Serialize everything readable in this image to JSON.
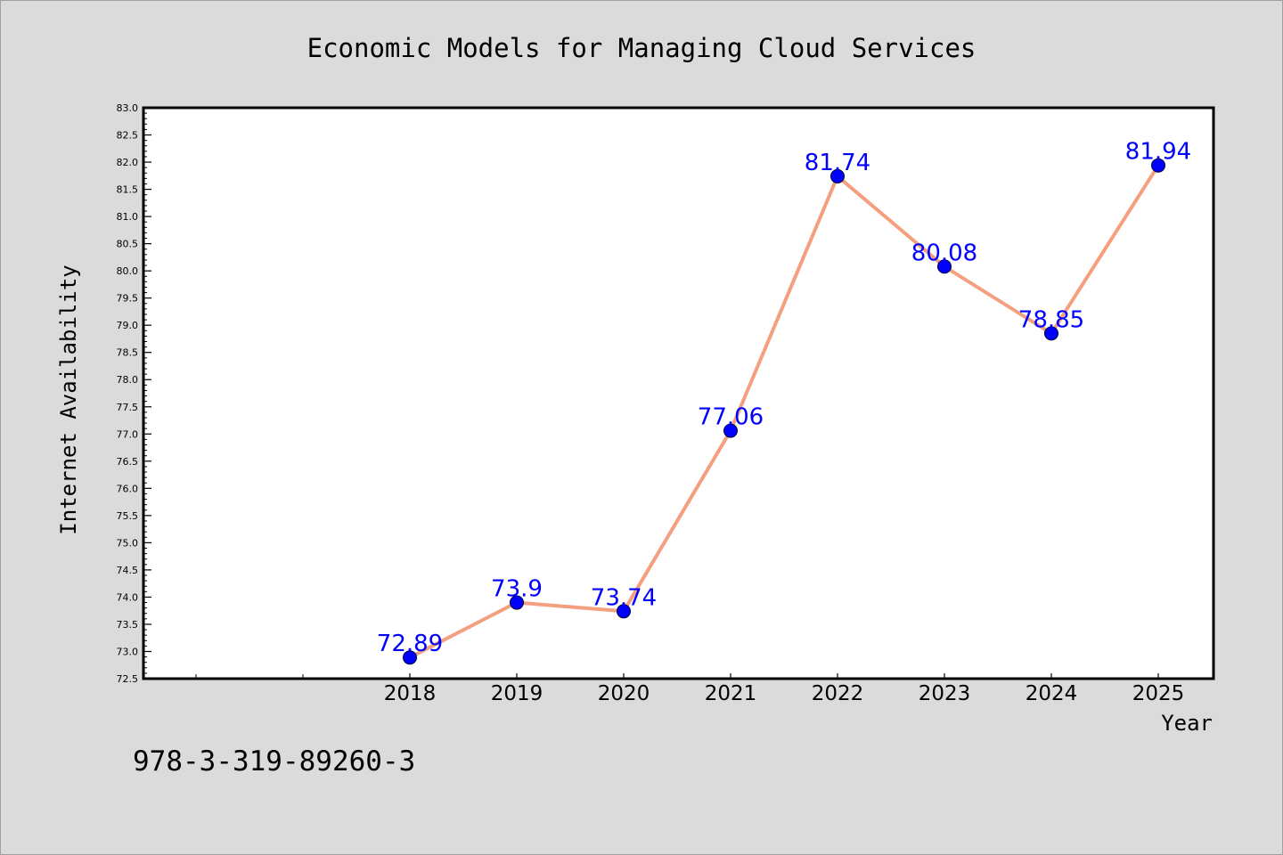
{
  "colors": {
    "background": "#dbdbdb",
    "plot_background": "#ffffff",
    "line": "#f4a07f",
    "marker": "#0000ff",
    "data_label": "#0000ff"
  },
  "isbn": "978-3-319-89260-3",
  "chart_data": {
    "type": "line",
    "title": "Economic Models for Managing Cloud Services",
    "xlabel": "Year",
    "ylabel": "Internet Availability",
    "x": [
      "2018",
      "2019",
      "2020",
      "2021",
      "2022",
      "2023",
      "2024",
      "2025"
    ],
    "series": [
      {
        "values": [
          72.89,
          73.9,
          73.74,
          77.06,
          81.74,
          80.08,
          78.85,
          81.94
        ],
        "labels": [
          "72.89",
          "73.9",
          "73.74",
          "77.06",
          "81.74",
          "80.08",
          "78.85",
          "81.94"
        ]
      }
    ],
    "ylim": [
      72.5,
      83.0
    ],
    "yticks": [
      "72.5",
      "73.0",
      "73.5",
      "74.0",
      "74.5",
      "75.0",
      "75.5",
      "76.0",
      "76.5",
      "77.0",
      "77.5",
      "78.0",
      "78.5",
      "79.0",
      "79.5",
      "80.0",
      "80.5",
      "81.0",
      "81.5",
      "82.0",
      "82.5",
      "83.0"
    ],
    "grid": false,
    "legend": false,
    "marker": "circle"
  }
}
